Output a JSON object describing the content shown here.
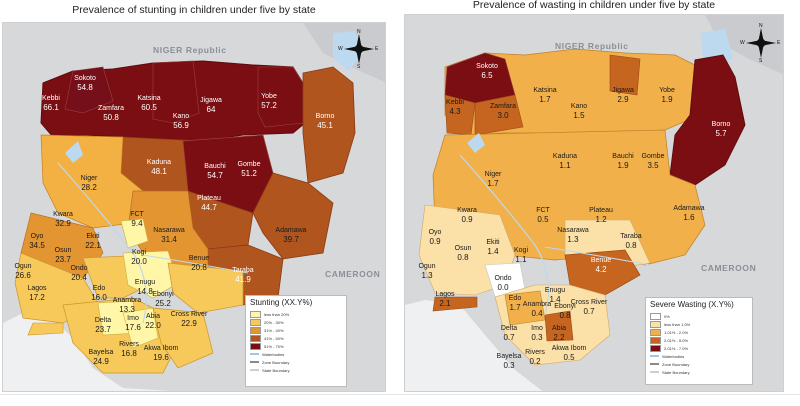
{
  "left_map": {
    "title": "Prevalence of stunting in children under five by state",
    "countries": {
      "niger": "NIGER Republic",
      "cameroon": "CAMEROON"
    },
    "states": [
      {
        "name": "Sokoto",
        "value": "54.8"
      },
      {
        "name": "Kebbi",
        "value": "66.1"
      },
      {
        "name": "Zamfara",
        "value": "50.8"
      },
      {
        "name": "Katsina",
        "value": "60.5"
      },
      {
        "name": "Jigawa",
        "value": "64"
      },
      {
        "name": "Yobe",
        "value": "57.2"
      },
      {
        "name": "Borno",
        "value": "45.1"
      },
      {
        "name": "Kano",
        "value": "56.9"
      },
      {
        "name": "Kaduna",
        "value": "48.1"
      },
      {
        "name": "Bauchi",
        "value": "54.7"
      },
      {
        "name": "Gombe",
        "value": "51.2"
      },
      {
        "name": "Niger",
        "value": "28.2"
      },
      {
        "name": "Plateau",
        "value": "44.7"
      },
      {
        "name": "Adamawa",
        "value": "39.7"
      },
      {
        "name": "Kwara",
        "value": "32.9"
      },
      {
        "name": "FCT",
        "value": "9.4"
      },
      {
        "name": "Nasarawa",
        "value": "31.4"
      },
      {
        "name": "Taraba",
        "value": "41.9"
      },
      {
        "name": "Oyo",
        "value": "34.5"
      },
      {
        "name": "Ekiti",
        "value": "22.1"
      },
      {
        "name": "Kogi",
        "value": "20.0"
      },
      {
        "name": "Benue",
        "value": "20.8"
      },
      {
        "name": "Osun",
        "value": "23.7"
      },
      {
        "name": "Ogun",
        "value": "26.6"
      },
      {
        "name": "Ondo",
        "value": "20.4"
      },
      {
        "name": "Lagos",
        "value": "17.2"
      },
      {
        "name": "Edo",
        "value": "16.0"
      },
      {
        "name": "Enugu",
        "value": "14.8"
      },
      {
        "name": "Ebonyi",
        "value": "25.2"
      },
      {
        "name": "Anambra",
        "value": "13.3"
      },
      {
        "name": "Cross River",
        "value": "22.9"
      },
      {
        "name": "Delta",
        "value": "23.7"
      },
      {
        "name": "Imo",
        "value": "17.6"
      },
      {
        "name": "Abia",
        "value": "22.0"
      },
      {
        "name": "Rivers",
        "value": "16.8"
      },
      {
        "name": "Akwa Ibom",
        "value": "19.6"
      },
      {
        "name": "Bayelsa",
        "value": "24.9"
      }
    ],
    "legend": {
      "title": "Stunting (XX.Y%)",
      "items": [
        {
          "label": "less than 20%",
          "color": "#fff6a8"
        },
        {
          "label": "20% - 30%",
          "color": "#f7c95a"
        },
        {
          "label": "31% - 40%",
          "color": "#e39532"
        },
        {
          "label": "41% - 50%",
          "color": "#b1551f"
        },
        {
          "label": "51% - 70%",
          "color": "#7a0e12"
        }
      ],
      "lines": [
        {
          "label": "Waterbodies",
          "color": "#9fc8e8"
        },
        {
          "label": "Zone Boundary",
          "color": "#8a8a8a"
        },
        {
          "label": "State Boundary",
          "color": "#cfcfcf"
        }
      ]
    }
  },
  "right_map": {
    "title": "Prevalence of wasting in children under five by state",
    "countries": {
      "niger": "NIGER Republic",
      "cameroon": "CAMEROON"
    },
    "states": [
      {
        "name": "Sokoto",
        "value": "6.5"
      },
      {
        "name": "Kebbi",
        "value": "4.3"
      },
      {
        "name": "Zamfara",
        "value": "3.0"
      },
      {
        "name": "Katsina",
        "value": "1.7"
      },
      {
        "name": "Kano",
        "value": "1.5"
      },
      {
        "name": "Jigawa",
        "value": "2.9"
      },
      {
        "name": "Yobe",
        "value": "1.9"
      },
      {
        "name": "Borno",
        "value": "5.7"
      },
      {
        "name": "Kaduna",
        "value": "1.1"
      },
      {
        "name": "Bauchi",
        "value": "1.9"
      },
      {
        "name": "Gombe",
        "value": "3.5"
      },
      {
        "name": "Niger",
        "value": "1.7"
      },
      {
        "name": "Adamawa",
        "value": "1.6"
      },
      {
        "name": "Kwara",
        "value": "0.9"
      },
      {
        "name": "FCT",
        "value": "0.5"
      },
      {
        "name": "Plateau",
        "value": "1.2"
      },
      {
        "name": "Nasarawa",
        "value": "1.3"
      },
      {
        "name": "Taraba",
        "value": "0.8"
      },
      {
        "name": "Oyo",
        "value": "0.9"
      },
      {
        "name": "Osun",
        "value": "0.8"
      },
      {
        "name": "Ekiti",
        "value": "1.4"
      },
      {
        "name": "Kogi",
        "value": "1.1"
      },
      {
        "name": "Benue",
        "value": "4.2"
      },
      {
        "name": "Ogun",
        "value": "1.3"
      },
      {
        "name": "Ondo",
        "value": "0.0"
      },
      {
        "name": "Lagos",
        "value": "2.1"
      },
      {
        "name": "Edo",
        "value": "1.7"
      },
      {
        "name": "Enugu",
        "value": "1.4"
      },
      {
        "name": "Anambra",
        "value": "0.4"
      },
      {
        "name": "Ebonyi",
        "value": "0.8"
      },
      {
        "name": "Cross River",
        "value": "0.7"
      },
      {
        "name": "Delta",
        "value": "0.7"
      },
      {
        "name": "Imo",
        "value": "0.3"
      },
      {
        "name": "Abia",
        "value": "2.2"
      },
      {
        "name": "Bayelsa",
        "value": "0.3"
      },
      {
        "name": "Rivers",
        "value": "0.2"
      },
      {
        "name": "Akwa Ibom",
        "value": "0.5"
      }
    ],
    "legend": {
      "title": "Severe Wasting (X.Y%)",
      "items": [
        {
          "label": "0%",
          "color": "#ffffff"
        },
        {
          "label": "less than 1.0%",
          "color": "#fbe0a8"
        },
        {
          "label": "1.01% - 2.0%",
          "color": "#f2b04a"
        },
        {
          "label": "2.01% - 5.0%",
          "color": "#c5651f"
        },
        {
          "label": "2.01% - 7.0%",
          "color": "#7a0e12"
        }
      ],
      "lines": [
        {
          "label": "Waterbodies",
          "color": "#9fc8e8"
        },
        {
          "label": "Zone Boundary",
          "color": "#8a8a8a"
        },
        {
          "label": "State Boundary",
          "color": "#cfcfcf"
        }
      ]
    }
  },
  "compass_letters": {
    "n": "N",
    "e": "E",
    "s": "S",
    "w": "W"
  },
  "colors": {
    "stunt_lt20": "#fff6a8",
    "stunt_20_30": "#f7c95a",
    "stunt_31_40": "#e39532",
    "stunt_41_50": "#b1551f",
    "stunt_51_70": "#7a0e12",
    "waste_0": "#ffffff",
    "waste_lt1": "#fbe0a8",
    "waste_1_2": "#f2b04a",
    "waste_2_5": "#c5651f",
    "waste_5_7": "#7a0e12",
    "land": "#c9cbce",
    "water": "#bcd9ef"
  }
}
